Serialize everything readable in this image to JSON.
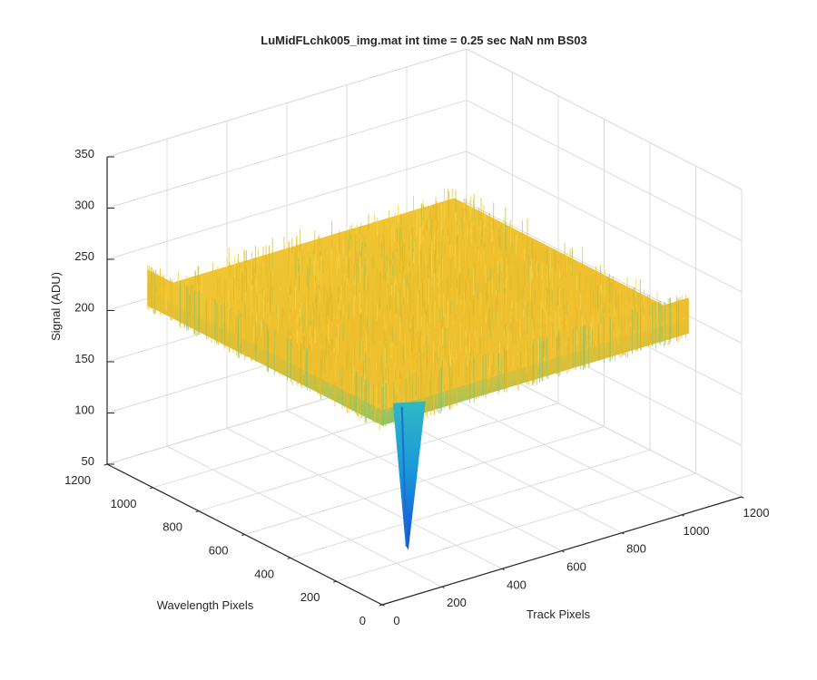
{
  "chart_data": {
    "type": "surface",
    "title": "LuMidFLchk005_img.mat int time = 0.25 sec  NaN nm BS03",
    "xlabel": "Track Pixels",
    "ylabel": "Wavelength Pixels",
    "zlabel": "Signal (ADU)",
    "xlim": [
      0,
      1200
    ],
    "ylim": [
      0,
      1200
    ],
    "zlim": [
      50,
      350
    ],
    "x_ticks": [
      "0",
      "200",
      "400",
      "600",
      "800",
      "1000",
      "1200"
    ],
    "y_ticks": [
      "0",
      "200",
      "400",
      "600",
      "800",
      "1000",
      "1200"
    ],
    "z_ticks": [
      "50",
      "100",
      "150",
      "200",
      "250",
      "300",
      "350"
    ],
    "grid": true,
    "colormap": "parula",
    "surface": {
      "x_extent": [
        0,
        1024
      ],
      "y_extent": [
        0,
        1024
      ],
      "mean_signal": 240,
      "noise_range": [
        225,
        260
      ],
      "dip": {
        "x": 130,
        "y": 60,
        "min_signal": 85
      }
    },
    "colors": {
      "high": "#f2c930",
      "mid": "#e8b820",
      "low_green": "#7ec46a",
      "dip_blue": "#1466d8",
      "dip_cyan": "#14b0d0"
    }
  }
}
